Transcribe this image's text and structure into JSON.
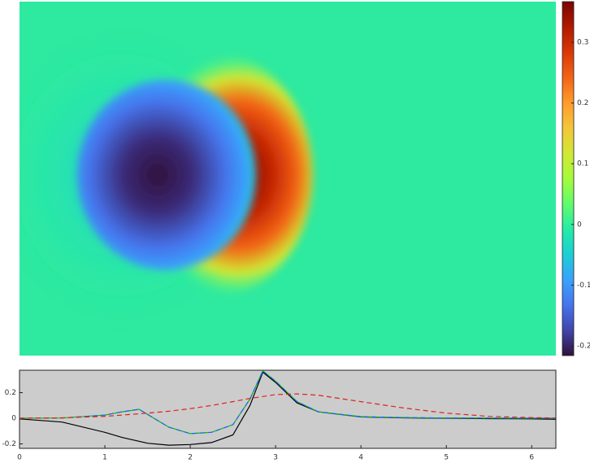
{
  "chart_data": [
    {
      "type": "heatmap",
      "clim": [
        -0.216,
        0.367
      ],
      "cticks": [
        -0.2,
        -0.1,
        0,
        0.1,
        0.2,
        0.3
      ],
      "colormap": [
        "#30123b",
        "#4145ab",
        "#4675ed",
        "#39a2fc",
        "#1bcfd4",
        "#24eca6",
        "#61fc6c",
        "#a4fc3b",
        "#d1e834",
        "#f3c63a",
        "#fe9b2d",
        "#f36315",
        "#d93806",
        "#b11901",
        "#7a0403"
      ]
    },
    {
      "type": "line",
      "x": [
        0,
        0.5,
        1,
        1.2,
        1.4,
        1.5,
        1.75,
        2,
        2.25,
        2.5,
        2.7,
        2.85,
        3,
        3.25,
        3.5,
        4,
        4.5,
        5,
        5.5,
        6,
        6.28
      ],
      "series": [
        {
          "color": "#000000",
          "dash": false,
          "values": [
            -0.005,
            -0.03,
            -0.11,
            -0.15,
            -0.18,
            -0.195,
            -0.21,
            -0.205,
            -0.19,
            -0.13,
            0.1,
            0.36,
            0.28,
            0.12,
            0.05,
            0.01,
            0.003,
            0,
            -0.003,
            -0.005,
            -0.008
          ]
        },
        {
          "color": "#00c000",
          "dash": false,
          "values": [
            0,
            0.002,
            0.025,
            0.05,
            0.07,
            0.03,
            -0.07,
            -0.12,
            -0.11,
            -0.05,
            0.15,
            0.37,
            0.29,
            0.13,
            0.05,
            0.012,
            0.005,
            0.002,
            0.001,
            0,
            0
          ]
        },
        {
          "color": "#2060ff",
          "dash": true,
          "values": [
            0,
            0.002,
            0.025,
            0.05,
            0.07,
            0.03,
            -0.07,
            -0.12,
            -0.11,
            -0.05,
            0.15,
            0.37,
            0.29,
            0.13,
            0.05,
            0.012,
            0.005,
            0.002,
            0.001,
            0,
            0
          ]
        },
        {
          "color": "#e02020",
          "dash": true,
          "values": [
            0,
            0.003,
            0.015,
            0.025,
            0.035,
            0.04,
            0.055,
            0.075,
            0.1,
            0.13,
            0.155,
            0.17,
            0.185,
            0.19,
            0.18,
            0.13,
            0.08,
            0.04,
            0.015,
            0.005,
            0.002
          ]
        }
      ],
      "xlim": [
        0,
        6.2832
      ],
      "xticks": [
        0,
        1,
        2,
        3,
        4,
        5,
        6
      ],
      "ylim": [
        -0.235,
        0.375
      ],
      "yticks": [
        -0.2,
        0,
        0.2
      ]
    }
  ]
}
